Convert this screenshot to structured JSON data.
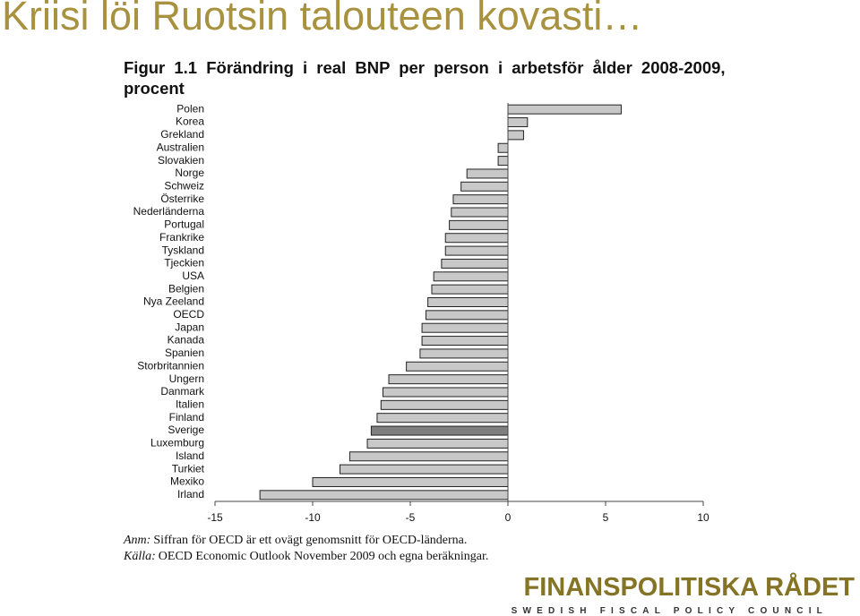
{
  "slide_title": "Kriisi löi Ruotsin talouteen kovasti…",
  "chart_data": {
    "type": "bar",
    "title": "Figur 1.1 Förändring i real BNP per person i arbetsför ålder 2008-2009, procent",
    "categories": [
      "Polen",
      "Korea",
      "Grekland",
      "Australien",
      "Slovakien",
      "Norge",
      "Schweiz",
      "Österrike",
      "Nederländerna",
      "Portugal",
      "Frankrike",
      "Tyskland",
      "Tjeckien",
      "USA",
      "Belgien",
      "Nya Zeeland",
      "OECD",
      "Japan",
      "Kanada",
      "Spanien",
      "Storbritannien",
      "Ungern",
      "Danmark",
      "Italien",
      "Finland",
      "Sverige",
      "Luxemburg",
      "Island",
      "Turkiet",
      "Mexiko",
      "Irland"
    ],
    "values": [
      5.8,
      1.0,
      0.8,
      -0.5,
      -0.5,
      -2.1,
      -2.4,
      -2.8,
      -2.9,
      -3.0,
      -3.2,
      -3.2,
      -3.4,
      -3.8,
      -3.9,
      -4.1,
      -4.2,
      -4.4,
      -4.4,
      -4.5,
      -5.2,
      -6.1,
      -6.4,
      -6.5,
      -6.7,
      -7.0,
      -7.2,
      -8.1,
      -8.6,
      -10.0,
      -12.7
    ],
    "colors": [
      "#c8c8c8",
      "#c8c8c8",
      "#c8c8c8",
      "#c8c8c8",
      "#c8c8c8",
      "#c8c8c8",
      "#c8c8c8",
      "#c8c8c8",
      "#c8c8c8",
      "#c8c8c8",
      "#c8c8c8",
      "#c8c8c8",
      "#c8c8c8",
      "#c8c8c8",
      "#c8c8c8",
      "#c8c8c8",
      "#c8c8c8",
      "#c8c8c8",
      "#c8c8c8",
      "#c8c8c8",
      "#c8c8c8",
      "#c8c8c8",
      "#c8c8c8",
      "#c8c8c8",
      "#c8c8c8",
      "#7f7f7f",
      "#c8c8c8",
      "#c8c8c8",
      "#c8c8c8",
      "#c8c8c8",
      "#c8c8c8"
    ],
    "xlim": [
      -15,
      10
    ],
    "xticks": [
      -15,
      -10,
      -5,
      0,
      5,
      10
    ],
    "grid": false
  },
  "footnotes": [
    {
      "label": "Anm:",
      "text": "Siffran för OECD är ett ovägt genomsnitt för OECD-länderna."
    },
    {
      "label": "Källa:",
      "text": "OECD Economic Outlook November 2009 och egna beräkningar."
    }
  ],
  "logo": {
    "name": "FINANSPOLITISKA RÅDET",
    "subtitle": "SWEDISH FISCAL POLICY COUNCIL"
  }
}
